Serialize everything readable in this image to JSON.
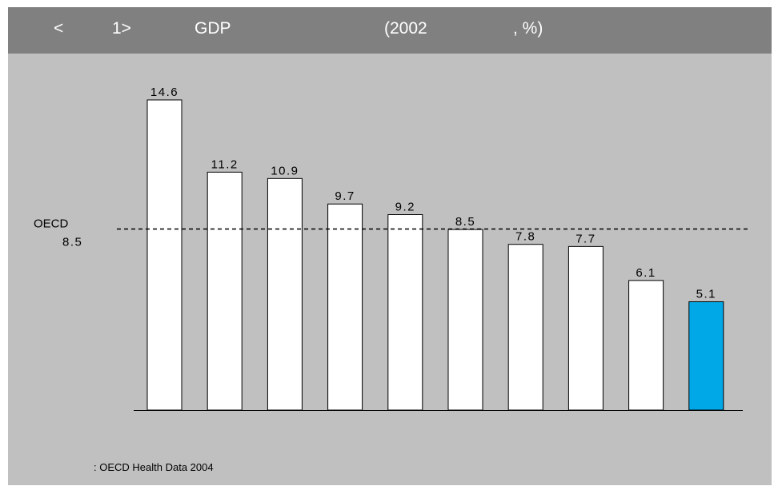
{
  "header": {
    "parts": [
      "<",
      "1>",
      "GDP",
      "(2002",
      ", %)"
    ],
    "background": "#808080",
    "text_color": "#ffffff"
  },
  "chart_data": {
    "type": "bar",
    "categories": [
      "",
      "",
      "",
      "",
      "",
      "",
      "",
      "",
      "",
      ""
    ],
    "values": [
      14.6,
      11.2,
      10.9,
      9.7,
      9.2,
      8.5,
      7.8,
      7.7,
      6.1,
      5.1
    ],
    "value_labels": [
      "14.6",
      "11.2",
      "10.9",
      "9.7",
      "9.2",
      "8.5",
      "7.8",
      "7.7",
      "6.1",
      "5.1"
    ],
    "highlight_index": 9,
    "ylim": [
      0,
      14.6
    ],
    "grid": false,
    "reference_line": {
      "label": "OECD",
      "value": 8.5,
      "value_label": "8.5",
      "style": "dashed"
    },
    "colors": {
      "bar": "#ffffff",
      "highlight": "#00a8e8",
      "outline": "#000000",
      "background": "#c0c0c0"
    }
  },
  "footer": {
    "source": ": OECD Health Data 2004"
  }
}
